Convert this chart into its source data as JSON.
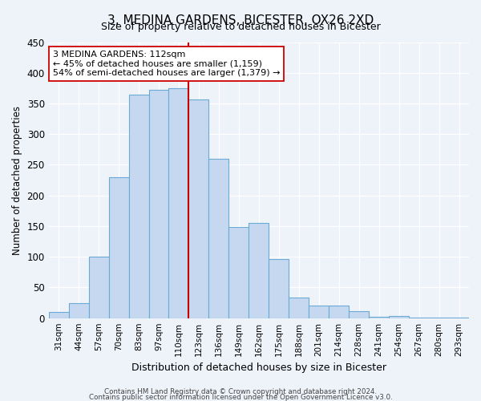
{
  "title": "3, MEDINA GARDENS, BICESTER, OX26 2XD",
  "subtitle": "Size of property relative to detached houses in Bicester",
  "xlabel": "Distribution of detached houses by size in Bicester",
  "ylabel": "Number of detached properties",
  "bar_labels": [
    "31sqm",
    "44sqm",
    "57sqm",
    "70sqm",
    "83sqm",
    "97sqm",
    "110sqm",
    "123sqm",
    "136sqm",
    "149sqm",
    "162sqm",
    "175sqm",
    "188sqm",
    "201sqm",
    "214sqm",
    "228sqm",
    "241sqm",
    "254sqm",
    "267sqm",
    "280sqm",
    "293sqm"
  ],
  "bar_values": [
    10,
    25,
    100,
    230,
    365,
    372,
    375,
    357,
    260,
    148,
    155,
    96,
    34,
    21,
    21,
    11,
    2,
    4,
    1,
    1,
    1
  ],
  "bar_color": "#c5d8f0",
  "bar_edge_color": "#6aaad4",
  "ylim": [
    0,
    450
  ],
  "yticks": [
    0,
    50,
    100,
    150,
    200,
    250,
    300,
    350,
    400,
    450
  ],
  "vline_index": 6,
  "vline_color": "#cc0000",
  "annotation_title": "3 MEDINA GARDENS: 112sqm",
  "annotation_line1": "← 45% of detached houses are smaller (1,159)",
  "annotation_line2": "54% of semi-detached houses are larger (1,379) →",
  "footer_line1": "Contains HM Land Registry data © Crown copyright and database right 2024.",
  "footer_line2": "Contains public sector information licensed under the Open Government Licence v3.0.",
  "background_color": "#eef2f9",
  "plot_bg_color": "#eef2f9"
}
